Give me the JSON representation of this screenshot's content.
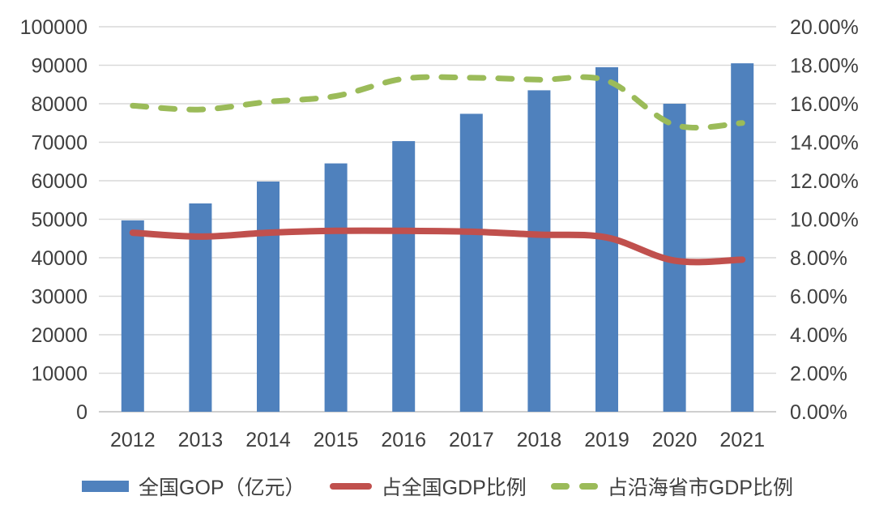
{
  "chart_data": {
    "type": "bar",
    "subtype": "combo-bar-line",
    "title": "",
    "categories": [
      "2012",
      "2013",
      "2014",
      "2015",
      "2016",
      "2017",
      "2018",
      "2019",
      "2020",
      "2021"
    ],
    "series": [
      {
        "name": "全国GOP（亿元）",
        "type": "bar",
        "axis": "left",
        "color": "#4F81BD",
        "values": [
          49700,
          54100,
          59800,
          64500,
          70300,
          77400,
          83500,
          89500,
          80000,
          90500
        ]
      },
      {
        "name": "占全国GDP比例",
        "type": "line",
        "axis": "right",
        "color": "#C0504D",
        "dashed": false,
        "values": [
          9.3,
          9.1,
          9.3,
          9.4,
          9.4,
          9.35,
          9.2,
          9.05,
          7.85,
          7.9
        ]
      },
      {
        "name": "占沿海省市GDP比例",
        "type": "line",
        "axis": "right",
        "color": "#9BBB59",
        "dashed": true,
        "values": [
          15.9,
          15.7,
          16.1,
          16.4,
          17.3,
          17.35,
          17.25,
          17.2,
          14.9,
          15.0
        ]
      }
    ],
    "left_axis": {
      "min": 0,
      "max": 100000,
      "step": 10000,
      "ticks": [
        "0",
        "10000",
        "20000",
        "30000",
        "40000",
        "50000",
        "60000",
        "70000",
        "80000",
        "90000",
        "100000"
      ]
    },
    "right_axis": {
      "min": 0,
      "max": 20,
      "step": 2,
      "ticks": [
        "0.00%",
        "2.00%",
        "4.00%",
        "6.00%",
        "8.00%",
        "10.00%",
        "12.00%",
        "14.00%",
        "16.00%",
        "18.00%",
        "20.00%"
      ]
    },
    "grid": true,
    "legend_position": "bottom",
    "colors": {
      "gridline": "#D9D9D9",
      "axis_line": "#BFBFBF",
      "tick_text": "#3f3f3f",
      "background": "#ffffff"
    }
  }
}
